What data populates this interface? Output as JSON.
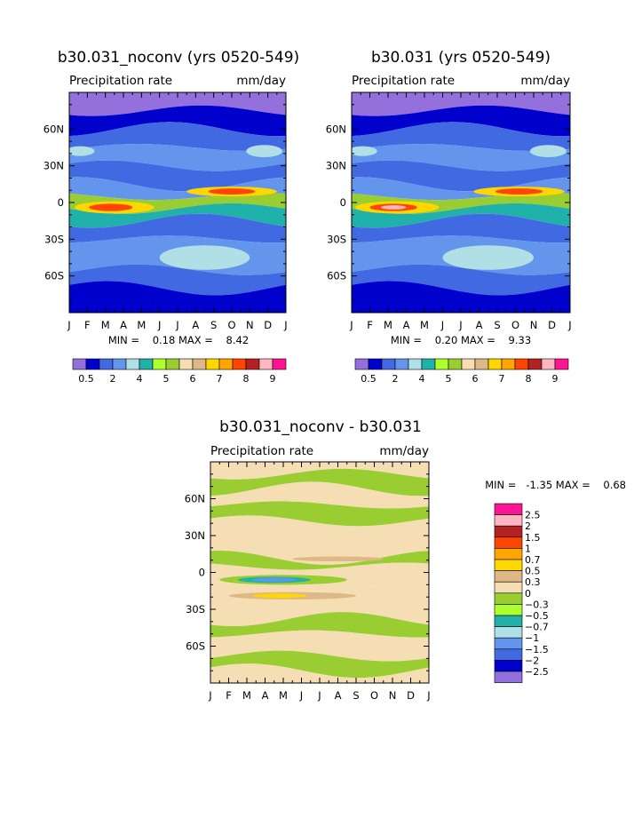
{
  "chart_data": [
    {
      "type": "heatmap",
      "title": "b30.031_noconv (yrs 0520-549)",
      "subtitle": "Precipitation rate",
      "units": "mm/day",
      "stats": "MIN =    0.18 MAX =    8.42",
      "x_ticks": [
        "J",
        "F",
        "M",
        "A",
        "M",
        "J",
        "J",
        "A",
        "S",
        "O",
        "N",
        "D",
        "J"
      ],
      "y_ticks": [
        "60N",
        "30N",
        "0",
        "30S",
        "60S"
      ],
      "legend_labels": [
        "0.5",
        "2",
        "4",
        "5",
        "6",
        "7",
        "8",
        "9"
      ],
      "legend_colors": [
        "#9370db",
        "#0000cd",
        "#4169e1",
        "#6495ed",
        "#b0e0e6",
        "#20b2aa",
        "#adff2f",
        "#9acd32",
        "#f5deb3",
        "#deb887",
        "#ffd700",
        "#ffa500",
        "#ff4500",
        "#b22222",
        "#ffb6c1",
        "#ff1493"
      ],
      "bands": [
        {
          "lat_from": 90,
          "lat_to": 75,
          "color": "#9370db"
        },
        {
          "lat_from": 75,
          "lat_to": 60,
          "color": "#0000cd"
        },
        {
          "lat_from": 60,
          "lat_to": 45,
          "color": "#4169e1"
        },
        {
          "lat_from": 45,
          "lat_to": 30,
          "color": "#6495ed"
        },
        {
          "lat_from": 30,
          "lat_to": 15,
          "color": "#4169e1"
        },
        {
          "lat_from": 15,
          "lat_to": 5,
          "color": "#6495ed"
        },
        {
          "lat_from": 5,
          "lat_to": -5,
          "color": "#9acd32"
        },
        {
          "lat_from": -5,
          "lat_to": -15,
          "color": "#20b2aa"
        },
        {
          "lat_from": -15,
          "lat_to": -30,
          "color": "#4169e1"
        },
        {
          "lat_from": -30,
          "lat_to": -55,
          "color": "#6495ed"
        },
        {
          "lat_from": -55,
          "lat_to": -70,
          "color": "#4169e1"
        },
        {
          "lat_from": -70,
          "lat_to": -90,
          "color": "#0000cd"
        }
      ],
      "blobs": [
        {
          "month": 7.5,
          "lat": -45,
          "dm": 2.5,
          "dlat": 10,
          "color": "#b0e0e6"
        },
        {
          "month": 2.5,
          "lat": -4,
          "dm": 2.2,
          "dlat": 5,
          "color": "#ffd700"
        },
        {
          "month": 2.3,
          "lat": -4,
          "dm": 1.2,
          "dlat": 3,
          "color": "#ff4500"
        },
        {
          "month": 9.0,
          "lat": 9,
          "dm": 2.5,
          "dlat": 4,
          "color": "#ffd700"
        },
        {
          "month": 9.0,
          "lat": 9,
          "dm": 1.3,
          "dlat": 2.5,
          "color": "#ff4500"
        },
        {
          "month": 0.6,
          "lat": 42,
          "dm": 0.8,
          "dlat": 4,
          "color": "#b0e0e6"
        },
        {
          "month": 10.8,
          "lat": 42,
          "dm": 1.0,
          "dlat": 5,
          "color": "#b0e0e6"
        }
      ]
    },
    {
      "type": "heatmap",
      "title": "b30.031 (yrs 0520-549)",
      "subtitle": "Precipitation rate",
      "units": "mm/day",
      "stats": "MIN =    0.20 MAX =    9.33",
      "x_ticks": [
        "J",
        "F",
        "M",
        "A",
        "M",
        "J",
        "J",
        "A",
        "S",
        "O",
        "N",
        "D",
        "J"
      ],
      "y_ticks": [
        "60N",
        "30N",
        "0",
        "30S",
        "60S"
      ],
      "legend_labels": [
        "0.5",
        "2",
        "4",
        "5",
        "6",
        "7",
        "8",
        "9"
      ],
      "legend_colors": [
        "#9370db",
        "#0000cd",
        "#4169e1",
        "#6495ed",
        "#b0e0e6",
        "#20b2aa",
        "#adff2f",
        "#9acd32",
        "#f5deb3",
        "#deb887",
        "#ffd700",
        "#ffa500",
        "#ff4500",
        "#b22222",
        "#ffb6c1",
        "#ff1493"
      ],
      "bands": [
        {
          "lat_from": 90,
          "lat_to": 75,
          "color": "#9370db"
        },
        {
          "lat_from": 75,
          "lat_to": 60,
          "color": "#0000cd"
        },
        {
          "lat_from": 60,
          "lat_to": 45,
          "color": "#4169e1"
        },
        {
          "lat_from": 45,
          "lat_to": 30,
          "color": "#6495ed"
        },
        {
          "lat_from": 30,
          "lat_to": 15,
          "color": "#4169e1"
        },
        {
          "lat_from": 15,
          "lat_to": 5,
          "color": "#6495ed"
        },
        {
          "lat_from": 5,
          "lat_to": -5,
          "color": "#9acd32"
        },
        {
          "lat_from": -5,
          "lat_to": -15,
          "color": "#20b2aa"
        },
        {
          "lat_from": -15,
          "lat_to": -30,
          "color": "#4169e1"
        },
        {
          "lat_from": -30,
          "lat_to": -55,
          "color": "#6495ed"
        },
        {
          "lat_from": -55,
          "lat_to": -70,
          "color": "#4169e1"
        },
        {
          "lat_from": -70,
          "lat_to": -90,
          "color": "#0000cd"
        }
      ],
      "blobs": [
        {
          "month": 7.5,
          "lat": -45,
          "dm": 2.5,
          "dlat": 10,
          "color": "#b0e0e6"
        },
        {
          "month": 2.5,
          "lat": -4,
          "dm": 2.3,
          "dlat": 5,
          "color": "#ffd700"
        },
        {
          "month": 2.3,
          "lat": -4,
          "dm": 1.3,
          "dlat": 3,
          "color": "#ff4500"
        },
        {
          "month": 2.3,
          "lat": -4,
          "dm": 0.7,
          "dlat": 1.8,
          "color": "#ffb6c1"
        },
        {
          "month": 9.2,
          "lat": 9,
          "dm": 2.5,
          "dlat": 4,
          "color": "#ffd700"
        },
        {
          "month": 9.2,
          "lat": 9,
          "dm": 1.3,
          "dlat": 2.5,
          "color": "#ff4500"
        },
        {
          "month": 0.6,
          "lat": 42,
          "dm": 0.8,
          "dlat": 4,
          "color": "#b0e0e6"
        },
        {
          "month": 10.8,
          "lat": 42,
          "dm": 1.0,
          "dlat": 5,
          "color": "#b0e0e6"
        }
      ]
    },
    {
      "type": "heatmap",
      "title": "b30.031_noconv - b30.031",
      "subtitle": "Precipitation rate",
      "units": "mm/day",
      "stats": "MIN =   -1.35 MAX =    0.68",
      "x_ticks": [
        "J",
        "F",
        "M",
        "A",
        "M",
        "J",
        "J",
        "A",
        "S",
        "O",
        "N",
        "D",
        "J"
      ],
      "y_ticks": [
        "60N",
        "30N",
        "0",
        "30S",
        "60S"
      ],
      "legend_labels": [
        "2.5",
        "2",
        "1.5",
        "1",
        "0.7",
        "0.5",
        "0.3",
        "0",
        "-0.3",
        "-0.5",
        "-0.7",
        "-1",
        "-1.5",
        "-2",
        "-2.5"
      ],
      "legend_colors": [
        "#ff1493",
        "#ffb6c1",
        "#b22222",
        "#ff4500",
        "#ffa500",
        "#ffd700",
        "#deb887",
        "#f5deb3",
        "#9acd32",
        "#adff2f",
        "#20b2aa",
        "#b0e0e6",
        "#6495ed",
        "#4169e1",
        "#0000cd",
        "#9370db"
      ],
      "bands": [
        {
          "lat_from": 90,
          "lat_to": 80,
          "color": "#f5deb3"
        },
        {
          "lat_from": 80,
          "lat_to": 68,
          "color": "#9acd32"
        },
        {
          "lat_from": 68,
          "lat_to": 55,
          "color": "#f5deb3"
        },
        {
          "lat_from": 55,
          "lat_to": 42,
          "color": "#9acd32"
        },
        {
          "lat_from": 42,
          "lat_to": 12,
          "color": "#f5deb3"
        },
        {
          "lat_from": 12,
          "lat_to": 5,
          "color": "#9acd32"
        },
        {
          "lat_from": 5,
          "lat_to": -15,
          "color": "#f5deb3"
        },
        {
          "lat_from": -15,
          "lat_to": -38,
          "color": "#f5deb3"
        },
        {
          "lat_from": -38,
          "lat_to": -50,
          "color": "#9acd32"
        },
        {
          "lat_from": -50,
          "lat_to": -68,
          "color": "#f5deb3"
        },
        {
          "lat_from": -68,
          "lat_to": -80,
          "color": "#9acd32"
        },
        {
          "lat_from": -80,
          "lat_to": -90,
          "color": "#f5deb3"
        }
      ],
      "blobs": [
        {
          "month": 4.0,
          "lat": -6,
          "dm": 3.5,
          "dlat": 4,
          "color": "#9acd32"
        },
        {
          "month": 3.5,
          "lat": -6,
          "dm": 2.0,
          "dlat": 2.5,
          "color": "#20b2aa"
        },
        {
          "month": 3.5,
          "lat": -6,
          "dm": 1.2,
          "dlat": 1.6,
          "color": "#6495ed"
        },
        {
          "month": 4.5,
          "lat": -19,
          "dm": 3.5,
          "dlat": 3,
          "color": "#deb887"
        },
        {
          "month": 3.8,
          "lat": -19,
          "dm": 1.5,
          "dlat": 1.8,
          "color": "#ffd700"
        },
        {
          "month": 7.0,
          "lat": 11,
          "dm": 2.5,
          "dlat": 2,
          "color": "#deb887"
        }
      ]
    }
  ]
}
